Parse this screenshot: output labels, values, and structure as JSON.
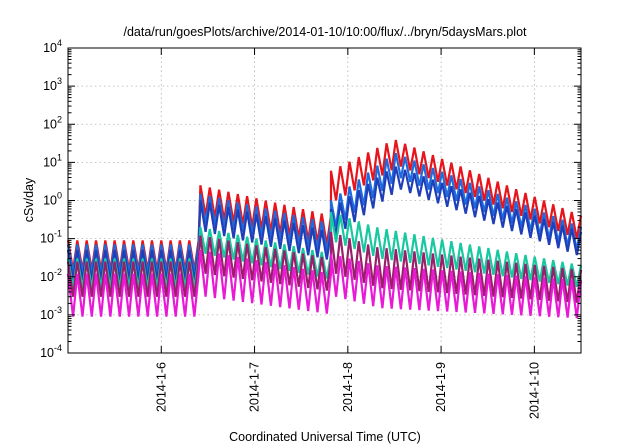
{
  "chart_data": {
    "type": "line",
    "title": "/data/run/goesPlots/archive/2014-01-10/10:00/flux/../bryn/5daysMars.plot",
    "xlabel": "Coordinated Universal Time (UTC)",
    "ylabel": "cSv/day",
    "y_scale": "log",
    "ylim_exponents": [
      -4,
      4
    ],
    "y_tick_labels": [
      {
        "base": "10",
        "exp": "-4"
      },
      {
        "base": "10",
        "exp": "-3"
      },
      {
        "base": "10",
        "exp": "-2"
      },
      {
        "base": "10",
        "exp": "-1"
      },
      {
        "base": "10",
        "exp": "0"
      },
      {
        "base": "10",
        "exp": "1"
      },
      {
        "base": "10",
        "exp": "2"
      },
      {
        "base": "10",
        "exp": "3"
      },
      {
        "base": "10",
        "exp": "4"
      }
    ],
    "xlim_days": [
      5.0,
      10.5
    ],
    "x_tick_labels": [
      "2014-1-6",
      "2014-1-7",
      "2014-1-8",
      "2014-1-9",
      "2014-1-10"
    ],
    "x_tick_days": [
      6,
      7,
      8,
      9,
      10
    ],
    "grid": true,
    "legend": "none",
    "series": [
      {
        "color": "#e8141c",
        "segments": [
          {
            "x": [
              5.0,
              6.4
            ],
            "peak": [
              0.09,
              0.09
            ],
            "trough": [
              0.015,
              0.015
            ]
          },
          {
            "x": [
              6.42,
              7.82
            ],
            "peak": [
              2.5,
              0.4
            ],
            "trough": [
              0.4,
              0.06
            ]
          },
          {
            "x": [
              7.82,
              10.5
            ],
            "peak": [
              6.0,
              40.0,
              0.4
            ],
            "trough": [
              1.0,
              8.0,
              0.08
            ],
            "peak_at": 8.5
          }
        ]
      },
      {
        "color": "#1e6be0",
        "segments": [
          {
            "x": [
              5.0,
              6.4
            ],
            "peak": [
              0.07,
              0.07
            ],
            "trough": [
              0.012,
              0.012
            ]
          },
          {
            "x": [
              6.42,
              7.82
            ],
            "peak": [
              1.5,
              0.25
            ],
            "trough": [
              0.25,
              0.04
            ]
          },
          {
            "x": [
              7.82,
              10.5
            ],
            "peak": [
              1.0,
              18.0,
              0.2
            ],
            "trough": [
              0.2,
              4.0,
              0.04
            ],
            "peak_at": 8.5
          }
        ]
      },
      {
        "color": "#1f3fb8",
        "segments": [
          {
            "x": [
              5.0,
              6.4
            ],
            "peak": [
              0.05,
              0.05
            ],
            "trough": [
              0.008,
              0.008
            ]
          },
          {
            "x": [
              6.42,
              7.82
            ],
            "peak": [
              1.0,
              0.15
            ],
            "trough": [
              0.15,
              0.025
            ]
          },
          {
            "x": [
              7.82,
              10.5
            ],
            "peak": [
              0.6,
              8.0,
              0.15
            ],
            "trough": [
              0.12,
              2.0,
              0.03
            ],
            "peak_at": 8.5
          }
        ]
      },
      {
        "color": "#17c8a0",
        "segments": [
          {
            "x": [
              5.0,
              6.4
            ],
            "peak": [
              0.03,
              0.03
            ],
            "trough": [
              0.005,
              0.005
            ]
          },
          {
            "x": [
              6.42,
              7.82
            ],
            "peak": [
              0.2,
              0.04
            ],
            "trough": [
              0.04,
              0.008
            ]
          },
          {
            "x": [
              7.82,
              10.5
            ],
            "peak": [
              0.5,
              0.2,
              0.02
            ],
            "trough": [
              0.08,
              0.03,
              0.005
            ],
            "peak_at": 8.3
          }
        ]
      },
      {
        "color": "#9a1f6a",
        "segments": [
          {
            "x": [
              5.0,
              6.4
            ],
            "peak": [
              0.025,
              0.025
            ],
            "trough": [
              0.003,
              0.003
            ]
          },
          {
            "x": [
              6.42,
              7.82
            ],
            "peak": [
              0.12,
              0.03
            ],
            "trough": [
              0.012,
              0.004
            ]
          },
          {
            "x": [
              7.82,
              10.5
            ],
            "peak": [
              0.15,
              0.06,
              0.015
            ],
            "trough": [
              0.012,
              0.005,
              0.002
            ],
            "peak_at": 8.3
          }
        ]
      },
      {
        "color": "#e81ad6",
        "segments": [
          {
            "x": [
              5.0,
              6.4
            ],
            "peak": [
              0.012,
              0.012
            ],
            "trough": [
              0.0009,
              0.0009
            ]
          },
          {
            "x": [
              6.42,
              7.82
            ],
            "peak": [
              0.05,
              0.012
            ],
            "trough": [
              0.003,
              0.001
            ]
          },
          {
            "x": [
              7.82,
              10.5
            ],
            "peak": [
              0.04,
              0.02,
              0.008
            ],
            "trough": [
              0.003,
              0.0015,
              0.0008
            ],
            "peak_at": 8.3
          }
        ]
      }
    ]
  }
}
